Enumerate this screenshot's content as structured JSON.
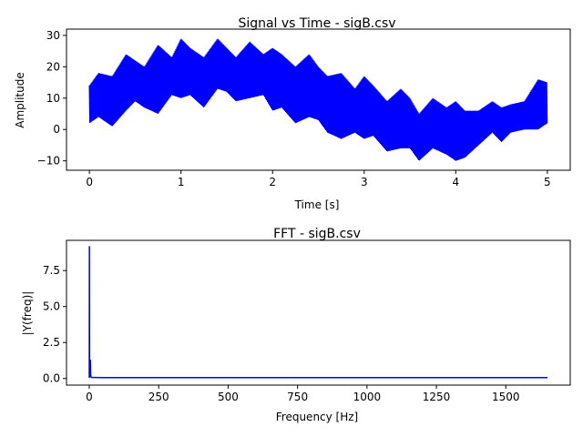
{
  "chart_data": [
    {
      "type": "line",
      "title": "Signal vs Time - sigB.csv",
      "xlabel": "Time [s]",
      "ylabel": "Amplitude",
      "xlim": [
        -0.25,
        5.25
      ],
      "ylim": [
        -13,
        32
      ],
      "xticks": [
        0,
        1,
        2,
        3,
        4,
        5
      ],
      "xtick_labels": [
        "0",
        "1",
        "2",
        "3",
        "4",
        "5"
      ],
      "yticks": [
        -10,
        0,
        10,
        20,
        30
      ],
      "ytick_labels": [
        "−10",
        "0",
        "10",
        "20",
        "30"
      ],
      "grid": false,
      "color": "#0000ff",
      "series": [
        {
          "envelope_time": [
            0,
            0.1,
            0.25,
            0.4,
            0.5,
            0.6,
            0.75,
            0.9,
            1.0,
            1.1,
            1.25,
            1.4,
            1.5,
            1.6,
            1.75,
            1.9,
            2.0,
            2.1,
            2.25,
            2.4,
            2.5,
            2.6,
            2.75,
            2.9,
            3.0,
            3.1,
            3.25,
            3.4,
            3.5,
            3.6,
            3.75,
            3.9,
            4.0,
            4.1,
            4.25,
            4.4,
            4.5,
            4.6,
            4.75,
            4.9,
            5.0
          ],
          "envelope_upper": [
            14,
            18,
            17,
            24,
            22,
            20,
            27,
            23,
            29,
            26,
            23,
            29,
            26,
            23,
            28,
            24,
            26,
            24,
            20,
            24,
            20,
            17,
            18,
            13,
            17,
            14,
            9,
            13,
            10,
            5,
            10,
            7,
            9,
            6,
            6,
            9,
            7,
            8,
            9,
            16,
            15
          ],
          "envelope_lower": [
            2,
            4,
            1,
            6,
            9,
            7,
            5,
            11,
            10,
            11,
            7,
            13,
            12,
            9,
            10,
            11,
            6,
            7,
            2,
            4,
            3,
            -1,
            -3,
            -1,
            -3,
            -2,
            -7,
            -6,
            -6,
            -10,
            -6,
            -8,
            -10,
            -9,
            -5,
            -1,
            -4,
            -1,
            0,
            0,
            2
          ]
        }
      ]
    },
    {
      "type": "line",
      "title": "FFT - sigB.csv",
      "xlabel": "Frequency [Hz]",
      "ylabel": "|Y(freq)|",
      "xlim": [
        -82,
        1732
      ],
      "ylim": [
        -0.46,
        9.6
      ],
      "xticks": [
        0,
        250,
        500,
        750,
        1000,
        1250,
        1500
      ],
      "xtick_labels": [
        "0",
        "250",
        "500",
        "750",
        "1000",
        "1250",
        "1500"
      ],
      "yticks": [
        0,
        2.5,
        5,
        7.5
      ],
      "ytick_labels": [
        "0.0",
        "2.5",
        "5.0",
        "7.5"
      ],
      "grid": false,
      "color": "#0000ff",
      "series": [
        {
          "x": [
            0,
            0.5,
            1,
            2,
            3,
            4,
            5,
            6,
            8,
            10,
            20,
            50,
            100,
            200,
            400,
            600,
            800,
            1000,
            1200,
            1400,
            1600,
            1650
          ],
          "y": [
            0.05,
            9.2,
            0.3,
            0.15,
            0.1,
            1.3,
            0.25,
            0.1,
            0.08,
            0.07,
            0.07,
            0.06,
            0.06,
            0.06,
            0.06,
            0.06,
            0.06,
            0.06,
            0.06,
            0.06,
            0.06,
            0.06
          ]
        }
      ]
    }
  ]
}
